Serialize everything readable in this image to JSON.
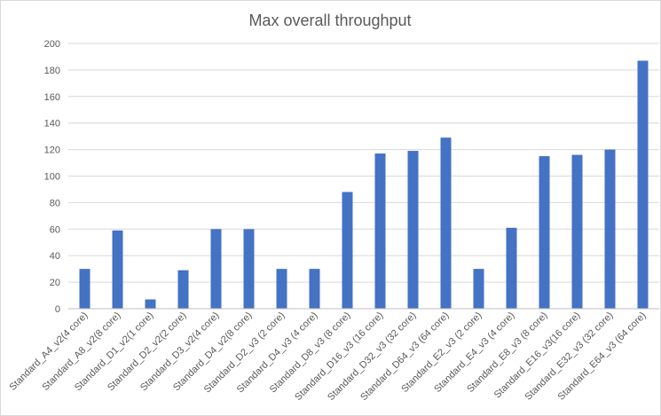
{
  "chart_data": {
    "type": "bar",
    "title": "Max overall throughput",
    "xlabel": "",
    "ylabel": "",
    "ylim": [
      0,
      200
    ],
    "yticks": [
      0,
      20,
      40,
      60,
      80,
      100,
      120,
      140,
      160,
      180,
      200
    ],
    "grid": true,
    "legend": "none",
    "bar_color": "#4472C4",
    "categories": [
      "Standard_A4_v2(4 core)",
      "Standard_A8_v2(8 core)",
      "Standard_D1_v2(1 core)",
      "Standard_D2_v2(2 core)",
      "Standard_D3_v2(4 core)",
      "Standard_D4_v2(8 core)",
      "Standard_D2_v3 (2 core)",
      "Standard_D4_v3 (4 core)",
      "Standard_D8_v3 (8 core)",
      "Standard_D16_v3 (16 core)",
      "Standard_D32_v3 (32 core)",
      "Standard_D64_v3 (64 core)",
      "Standard_E2_v3 (2 core)",
      "Standard_E4_v3 (4 core)",
      "Standard_E8_v3 (8 core)",
      "Standard_E16_v3(16 core)",
      "Standard_E32_v3 (32 core)",
      "Standard_E64_v3 (64 core)"
    ],
    "values": [
      30,
      59,
      7,
      29,
      60,
      60,
      30,
      30,
      88,
      117,
      119,
      129,
      30,
      61,
      115,
      116,
      120,
      187
    ]
  }
}
